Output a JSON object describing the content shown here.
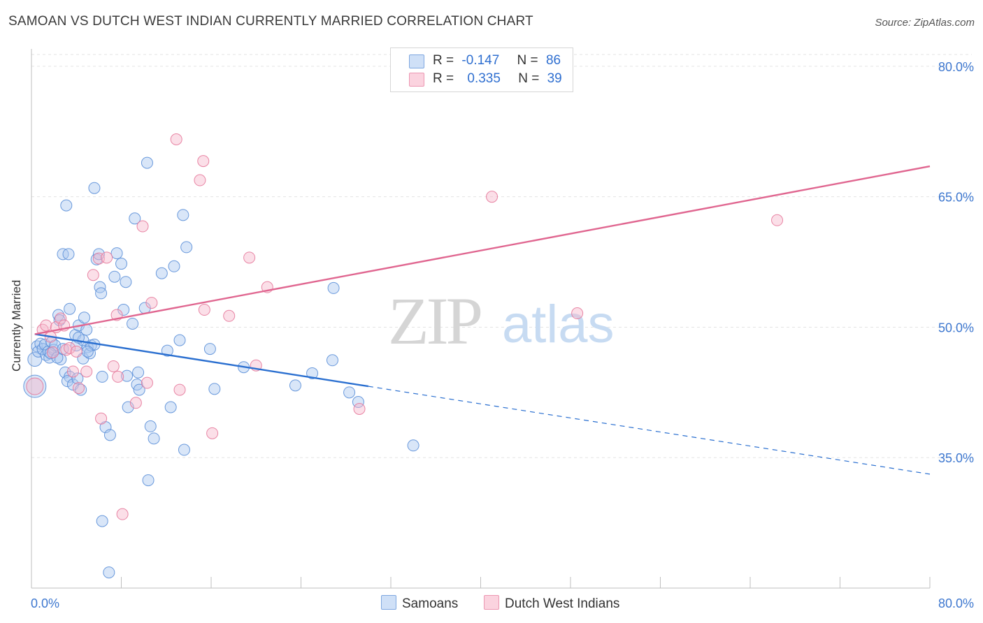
{
  "title": "SAMOAN VS DUTCH WEST INDIAN CURRENTLY MARRIED CORRELATION CHART",
  "source": "Source: ZipAtlas.com",
  "legend": {
    "rows": [
      {
        "r_label": "R =",
        "r_value": "-0.147",
        "n_label": "N =",
        "n_value": "86",
        "color": "#aac7ef"
      },
      {
        "r_label": "R =",
        "r_value": "0.335",
        "n_label": "N =",
        "n_value": "39",
        "color": "#f6b8cb"
      }
    ]
  },
  "chart_data": {
    "type": "scatter",
    "xlabel": "",
    "ylabel": "Currently Married",
    "xlim": [
      0,
      80
    ],
    "ylim": [
      20,
      82
    ],
    "x_tick_labels": [
      "0.0%",
      "80.0%"
    ],
    "y_ticks": [
      35,
      50,
      65,
      80
    ],
    "y_tick_labels": [
      "35.0%",
      "50.0%",
      "65.0%",
      "80.0%"
    ],
    "grid": true,
    "watermark": "ZIPatlas",
    "series": [
      {
        "name": "Samoans",
        "color": "#aac7ef",
        "stroke": "#5b8fd8",
        "trend_color": "#2a6fd0",
        "trend_solid": [
          [
            0.3,
            49.2
          ],
          [
            30,
            43.2
          ]
        ],
        "trend_dashed": [
          [
            30,
            43.2
          ],
          [
            80,
            33.1
          ]
        ],
        "points": [
          [
            0.3,
            46.3,
            10
          ],
          [
            0.3,
            43.2,
            16
          ],
          [
            0.5,
            47.8,
            8
          ],
          [
            0.6,
            47.2,
            8
          ],
          [
            0.8,
            48.1,
            8
          ],
          [
            1.0,
            47.5,
            8
          ],
          [
            1.2,
            48.0,
            8
          ],
          [
            1.3,
            46.8,
            8
          ],
          [
            1.5,
            47.2,
            8
          ],
          [
            1.6,
            46.5,
            8
          ],
          [
            1.8,
            48.3,
            8
          ],
          [
            2.0,
            47.4,
            8
          ],
          [
            2.1,
            47.9,
            8
          ],
          [
            1.7,
            47.0,
            8
          ],
          [
            2.4,
            51.4,
            8
          ],
          [
            2.5,
            50.8,
            8
          ],
          [
            2.6,
            46.3,
            8
          ],
          [
            2.3,
            46.5,
            8
          ],
          [
            2.8,
            58.4,
            8
          ],
          [
            3.3,
            58.4,
            8
          ],
          [
            3.1,
            64.0,
            8
          ],
          [
            3.0,
            44.8,
            8
          ],
          [
            3.4,
            44.3,
            8
          ],
          [
            3.2,
            43.8,
            8
          ],
          [
            3.7,
            43.4,
            8
          ],
          [
            3.9,
            49.1,
            8
          ],
          [
            4.0,
            47.9,
            8
          ],
          [
            4.2,
            50.2,
            8
          ],
          [
            4.1,
            44.1,
            8
          ],
          [
            4.4,
            42.8,
            8
          ],
          [
            4.6,
            46.4,
            8
          ],
          [
            4.7,
            51.1,
            8
          ],
          [
            4.9,
            49.7,
            8
          ],
          [
            5.0,
            47.7,
            8
          ],
          [
            5.2,
            47.0,
            8
          ],
          [
            5.3,
            47.9,
            8
          ],
          [
            5.6,
            66.0,
            8
          ],
          [
            5.8,
            57.8,
            8
          ],
          [
            6.0,
            58.4,
            8
          ],
          [
            6.1,
            54.6,
            8
          ],
          [
            6.2,
            53.9,
            8
          ],
          [
            6.3,
            44.3,
            8
          ],
          [
            6.6,
            38.5,
            8
          ],
          [
            5.6,
            48.0,
            8
          ],
          [
            5.0,
            47.2,
            8
          ],
          [
            4.6,
            48.5,
            8
          ],
          [
            4.2,
            48.8,
            8
          ],
          [
            3.4,
            52.1,
            8
          ],
          [
            2.8,
            47.5,
            8
          ],
          [
            7.0,
            37.6,
            8
          ],
          [
            7.4,
            55.8,
            8
          ],
          [
            7.6,
            58.5,
            8
          ],
          [
            8.0,
            57.3,
            8
          ],
          [
            8.2,
            52.0,
            8
          ],
          [
            8.4,
            55.2,
            8
          ],
          [
            8.5,
            44.4,
            8
          ],
          [
            8.6,
            40.8,
            8
          ],
          [
            9.0,
            50.4,
            8
          ],
          [
            9.2,
            62.5,
            8
          ],
          [
            9.4,
            43.4,
            8
          ],
          [
            9.5,
            44.8,
            8
          ],
          [
            9.6,
            42.8,
            8
          ],
          [
            10.1,
            52.2,
            8
          ],
          [
            10.3,
            68.9,
            8
          ],
          [
            10.4,
            32.4,
            8
          ],
          [
            10.6,
            38.6,
            8
          ],
          [
            10.9,
            37.2,
            8
          ],
          [
            11.6,
            56.2,
            8
          ],
          [
            12.1,
            47.3,
            8
          ],
          [
            12.4,
            40.8,
            8
          ],
          [
            12.7,
            57.0,
            8
          ],
          [
            13.2,
            48.5,
            8
          ],
          [
            13.5,
            62.9,
            8
          ],
          [
            13.6,
            35.9,
            8
          ],
          [
            13.8,
            59.2,
            8
          ],
          [
            15.9,
            47.5,
            8
          ],
          [
            16.3,
            42.9,
            8
          ],
          [
            18.9,
            45.4,
            8
          ],
          [
            23.5,
            43.3,
            8
          ],
          [
            25.0,
            44.7,
            8
          ],
          [
            26.8,
            46.2,
            8
          ],
          [
            26.9,
            54.5,
            8
          ],
          [
            28.3,
            42.5,
            8
          ],
          [
            29.1,
            41.4,
            8
          ],
          [
            34.0,
            36.4,
            8
          ],
          [
            6.3,
            27.7,
            8
          ],
          [
            6.9,
            21.8,
            8
          ]
        ]
      },
      {
        "name": "Dutch West Indians",
        "color": "#f6b8cb",
        "stroke": "#e5799b",
        "trend_color": "#e06690",
        "trend_solid": [
          [
            0.3,
            49.2
          ],
          [
            80,
            68.5
          ]
        ],
        "points": [
          [
            0.3,
            43.2,
            12
          ],
          [
            1.0,
            49.7,
            8
          ],
          [
            1.3,
            50.2,
            8
          ],
          [
            1.7,
            48.9,
            8
          ],
          [
            1.9,
            47.1,
            8
          ],
          [
            2.2,
            50.0,
            8
          ],
          [
            2.6,
            51.0,
            8
          ],
          [
            2.9,
            50.2,
            8
          ],
          [
            3.1,
            47.4,
            8
          ],
          [
            3.4,
            47.6,
            8
          ],
          [
            3.7,
            44.9,
            8
          ],
          [
            4.0,
            47.2,
            8
          ],
          [
            4.2,
            43.0,
            8
          ],
          [
            4.9,
            44.9,
            8
          ],
          [
            5.5,
            56.0,
            8
          ],
          [
            6.0,
            57.9,
            8
          ],
          [
            6.2,
            39.5,
            8
          ],
          [
            6.7,
            58.0,
            8
          ],
          [
            7.3,
            45.5,
            8
          ],
          [
            7.6,
            51.4,
            8
          ],
          [
            7.7,
            44.3,
            8
          ],
          [
            8.1,
            28.5,
            8
          ],
          [
            9.3,
            41.3,
            8
          ],
          [
            9.9,
            61.6,
            8
          ],
          [
            10.3,
            43.6,
            8
          ],
          [
            10.7,
            52.8,
            8
          ],
          [
            12.9,
            71.6,
            8
          ],
          [
            13.2,
            42.8,
            8
          ],
          [
            15.0,
            66.9,
            8
          ],
          [
            15.3,
            69.1,
            8
          ],
          [
            15.4,
            52.0,
            8
          ],
          [
            16.1,
            37.8,
            8
          ],
          [
            17.6,
            51.3,
            8
          ],
          [
            19.4,
            58.0,
            8
          ],
          [
            20.0,
            45.6,
            8
          ],
          [
            21.0,
            54.6,
            8
          ],
          [
            29.2,
            40.6,
            8
          ],
          [
            41.0,
            65.0,
            8
          ],
          [
            48.6,
            51.6,
            8
          ],
          [
            66.4,
            62.3,
            8
          ]
        ]
      }
    ]
  }
}
